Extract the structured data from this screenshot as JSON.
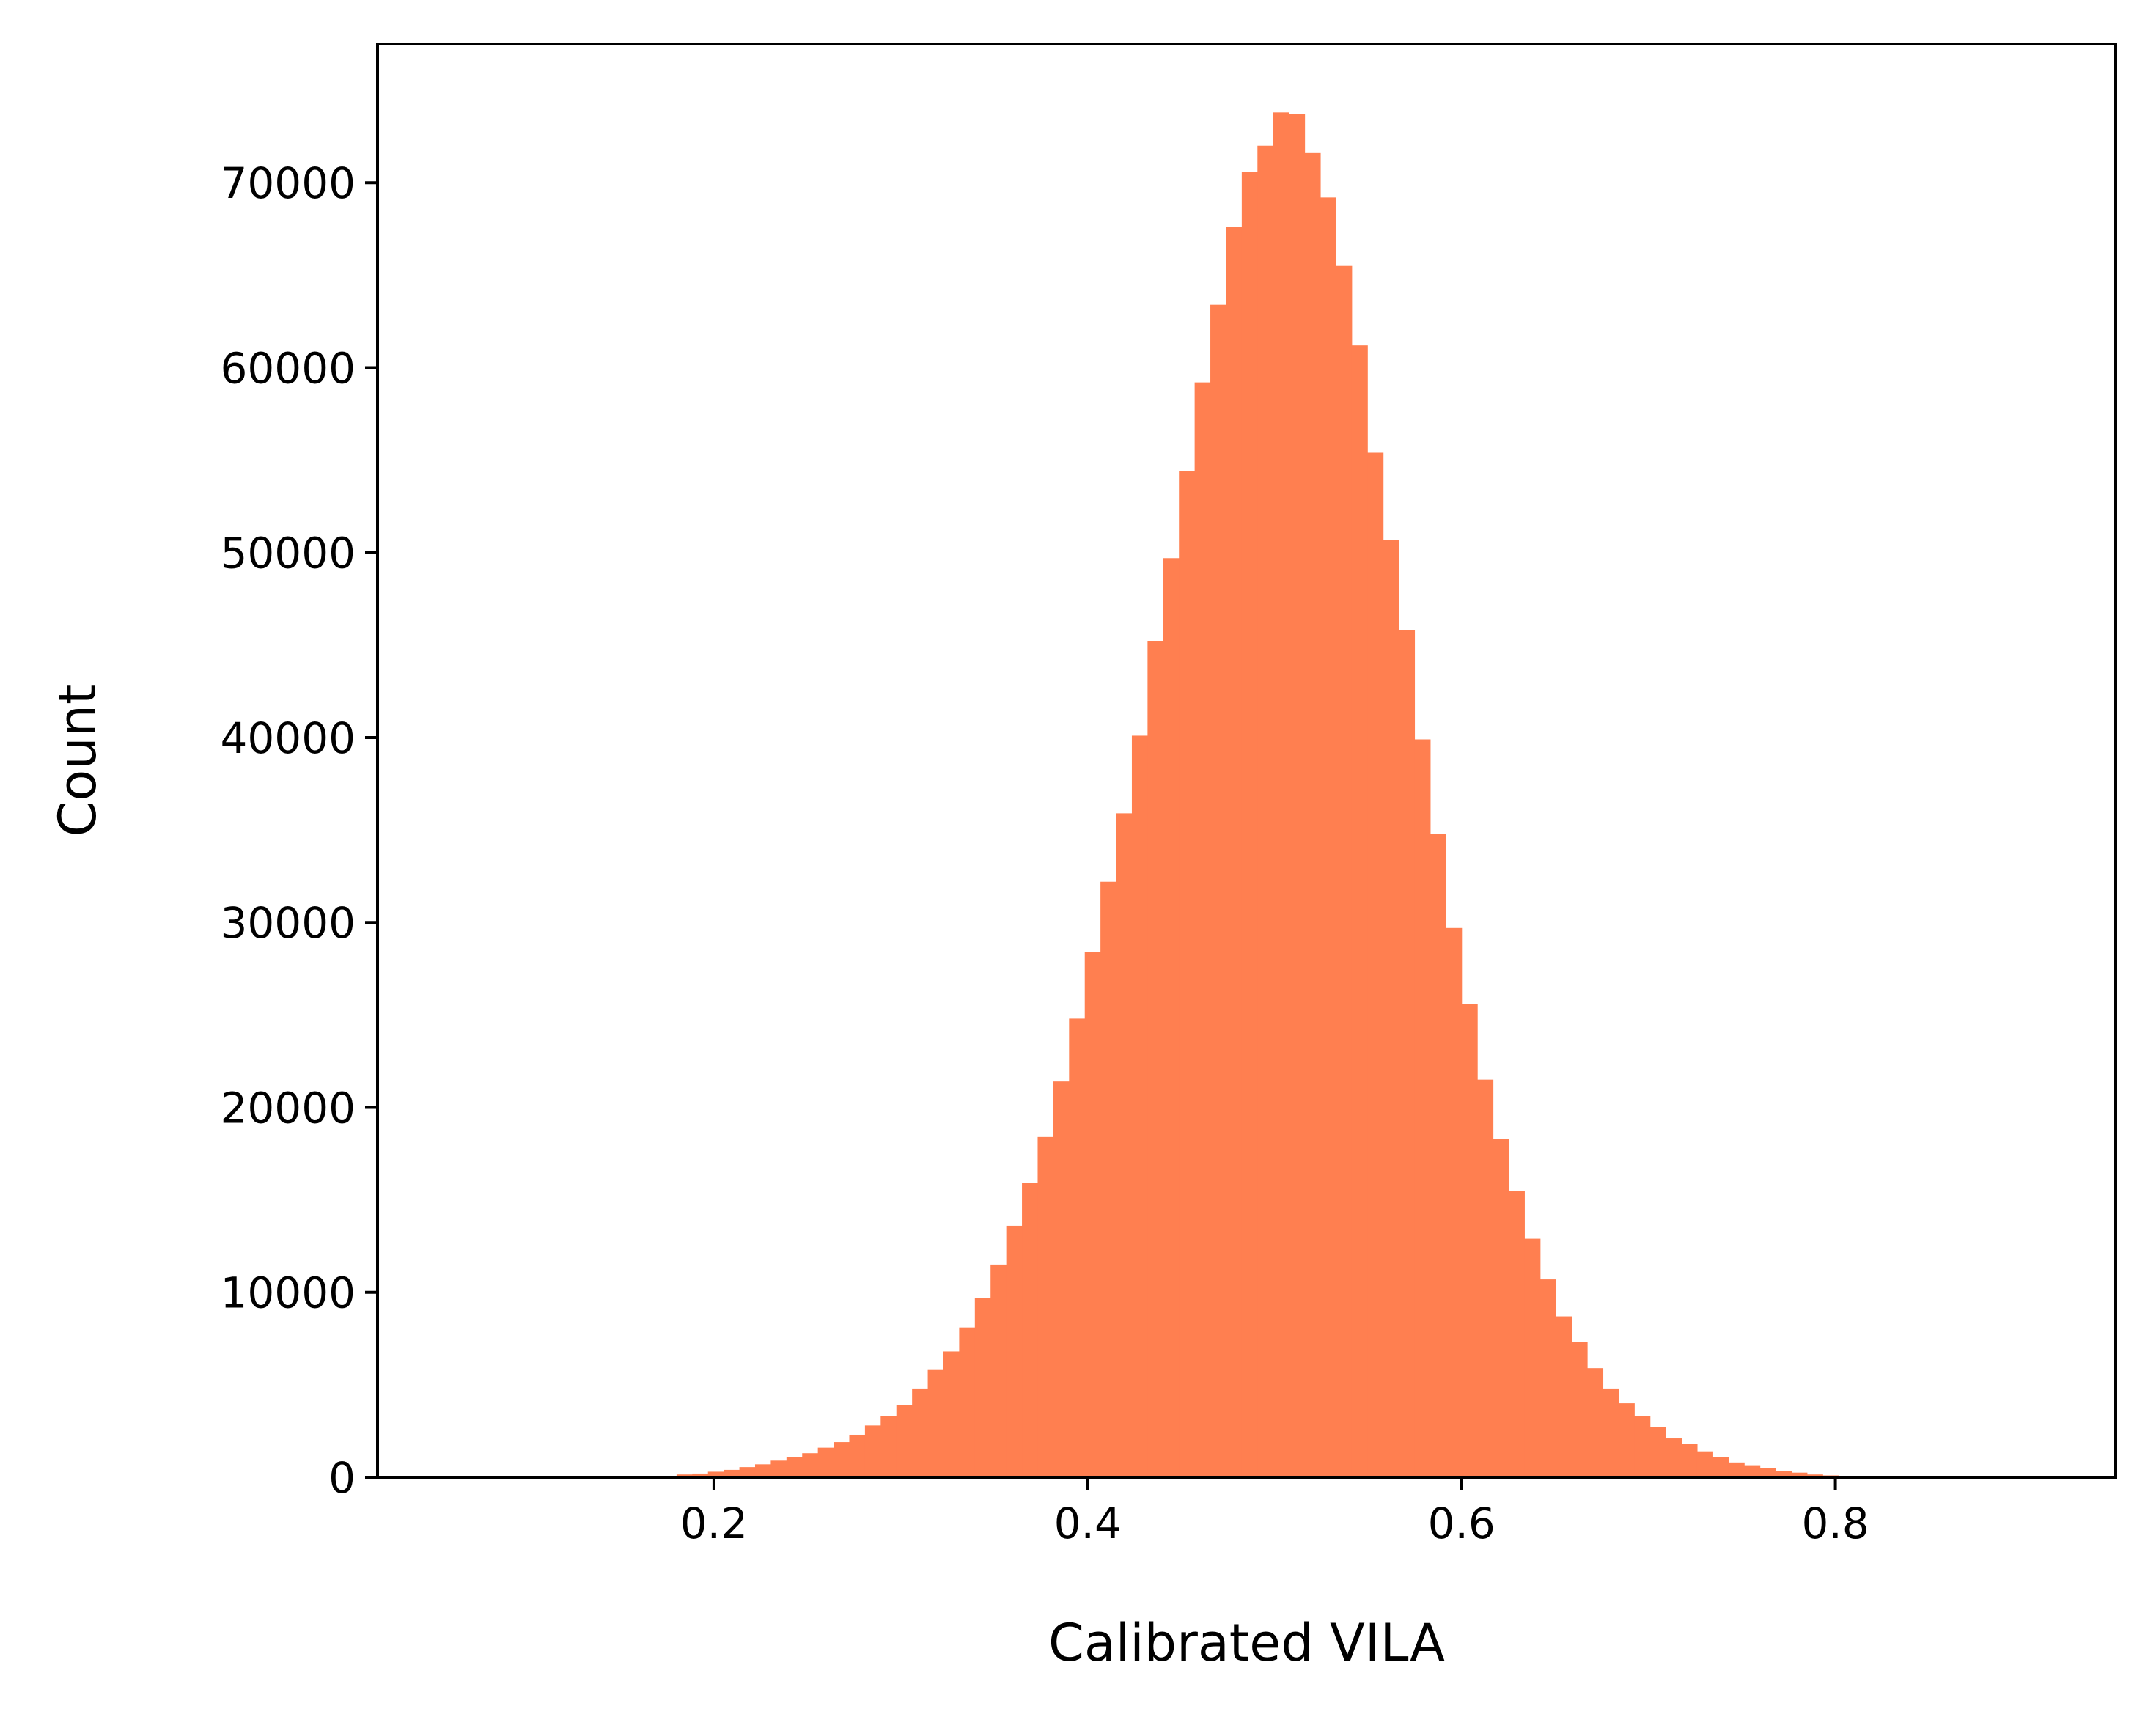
{
  "chart_data": {
    "type": "bar",
    "title": "",
    "xlabel": "Calibrated VILA",
    "ylabel": "Count",
    "xlim": [
      0.02,
      0.95
    ],
    "ylim": [
      0,
      77500
    ],
    "grid": false,
    "x_ticks": [
      0.2,
      0.4,
      0.6,
      0.8
    ],
    "x_tick_labels": [
      "0.2",
      "0.4",
      "0.6",
      "0.8"
    ],
    "y_ticks": [
      0,
      10000,
      20000,
      30000,
      40000,
      50000,
      60000,
      70000
    ],
    "y_tick_labels": [
      "0",
      "10000",
      "20000",
      "30000",
      "40000",
      "50000",
      "60000",
      "70000"
    ],
    "bar_color": "#ff7f50",
    "bin_width": 0.0084,
    "bins_start": [
      0.18,
      0.1884,
      0.1968,
      0.2052,
      0.2136,
      0.222,
      0.2304,
      0.2388,
      0.2472,
      0.2556,
      0.264,
      0.2724,
      0.2808,
      0.2892,
      0.2976,
      0.306,
      0.3144,
      0.3228,
      0.3312,
      0.3396,
      0.348,
      0.3564,
      0.3648,
      0.3732,
      0.3816,
      0.39,
      0.3984,
      0.4068,
      0.4152,
      0.4236,
      0.432,
      0.4404,
      0.4488,
      0.4572,
      0.4656,
      0.474,
      0.4824,
      0.4908,
      0.4992,
      0.5076,
      0.516,
      0.5244,
      0.5328,
      0.5412,
      0.5496,
      0.558,
      0.5664,
      0.5748,
      0.5832,
      0.5916,
      0.6,
      0.6084,
      0.6168,
      0.6252,
      0.6336,
      0.642,
      0.6504,
      0.6588,
      0.6672,
      0.6756,
      0.684,
      0.6924,
      0.7008,
      0.7092,
      0.7176,
      0.726,
      0.7344,
      0.7428,
      0.7512,
      0.7596,
      0.768,
      0.7764,
      0.7848,
      0.7932
    ],
    "counts": [
      150,
      200,
      300,
      400,
      550,
      700,
      900,
      1100,
      1300,
      1600,
      1900,
      2300,
      2800,
      3300,
      3900,
      4800,
      5800,
      6800,
      8100,
      9700,
      11500,
      13600,
      15900,
      18400,
      21400,
      24800,
      28400,
      32200,
      35900,
      40100,
      45200,
      49700,
      54400,
      59200,
      63400,
      67600,
      70600,
      72000,
      73800,
      73700,
      71600,
      69200,
      65500,
      61200,
      55400,
      50700,
      45800,
      39900,
      34800,
      29700,
      25600,
      21500,
      18300,
      15500,
      12900,
      10700,
      8700,
      7300,
      5900,
      4800,
      4000,
      3300,
      2700,
      2100,
      1800,
      1400,
      1100,
      800,
      650,
      500,
      350,
      250,
      150,
      100
    ]
  }
}
